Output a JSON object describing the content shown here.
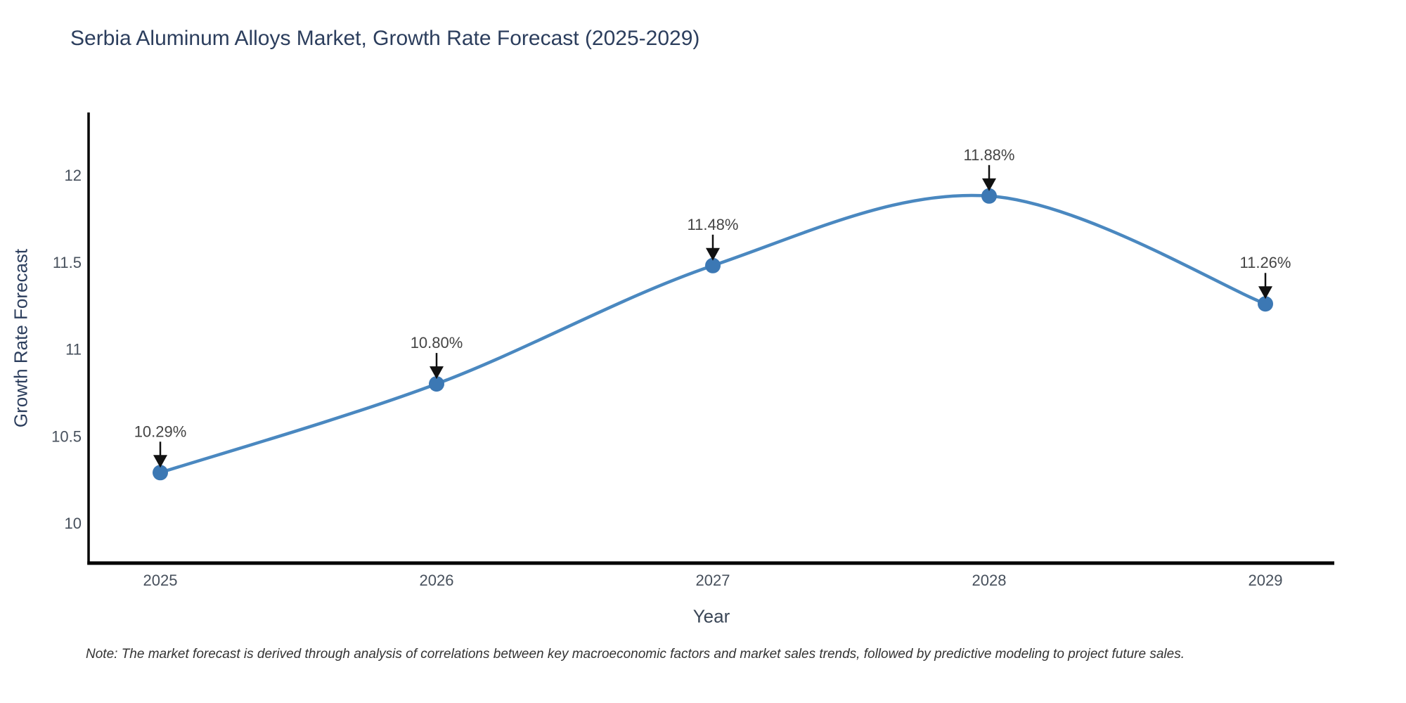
{
  "page": {
    "background": "#ffffff"
  },
  "note": "Note: The market forecast is derived through analysis of correlations between key macroeconomic factors and market sales trends, followed by predictive modeling to project future sales.",
  "chart_data": {
    "type": "line",
    "title": "Serbia Aluminum Alloys Market, Growth Rate Forecast (2025-2029)",
    "xlabel": "Year",
    "ylabel": "Growth Rate Forecast",
    "categories": [
      "2025",
      "2026",
      "2027",
      "2028",
      "2029"
    ],
    "values": [
      10.29,
      10.8,
      11.48,
      11.88,
      11.26
    ],
    "point_labels": [
      "10.29%",
      "10.80%",
      "11.48%",
      "11.88%",
      "11.26%"
    ],
    "yticks": [
      10,
      10.5,
      11,
      11.5,
      12
    ],
    "ytick_labels": [
      "10",
      "10.5",
      "11",
      "11.5",
      "12"
    ],
    "ylim": [
      9.77,
      12.36
    ],
    "line_shape": "spline",
    "grid": false,
    "legend": "none",
    "markers": true,
    "annotations": "arrow-labels",
    "colors": {
      "line": "#4a88c0",
      "marker": "#3c78b4",
      "axis": "#000000",
      "tick_label": "#47505c",
      "title": "#2c3e5d",
      "point_label": "#444444",
      "arrow": "#111111",
      "note": "#333333",
      "background": "#ffffff"
    }
  }
}
